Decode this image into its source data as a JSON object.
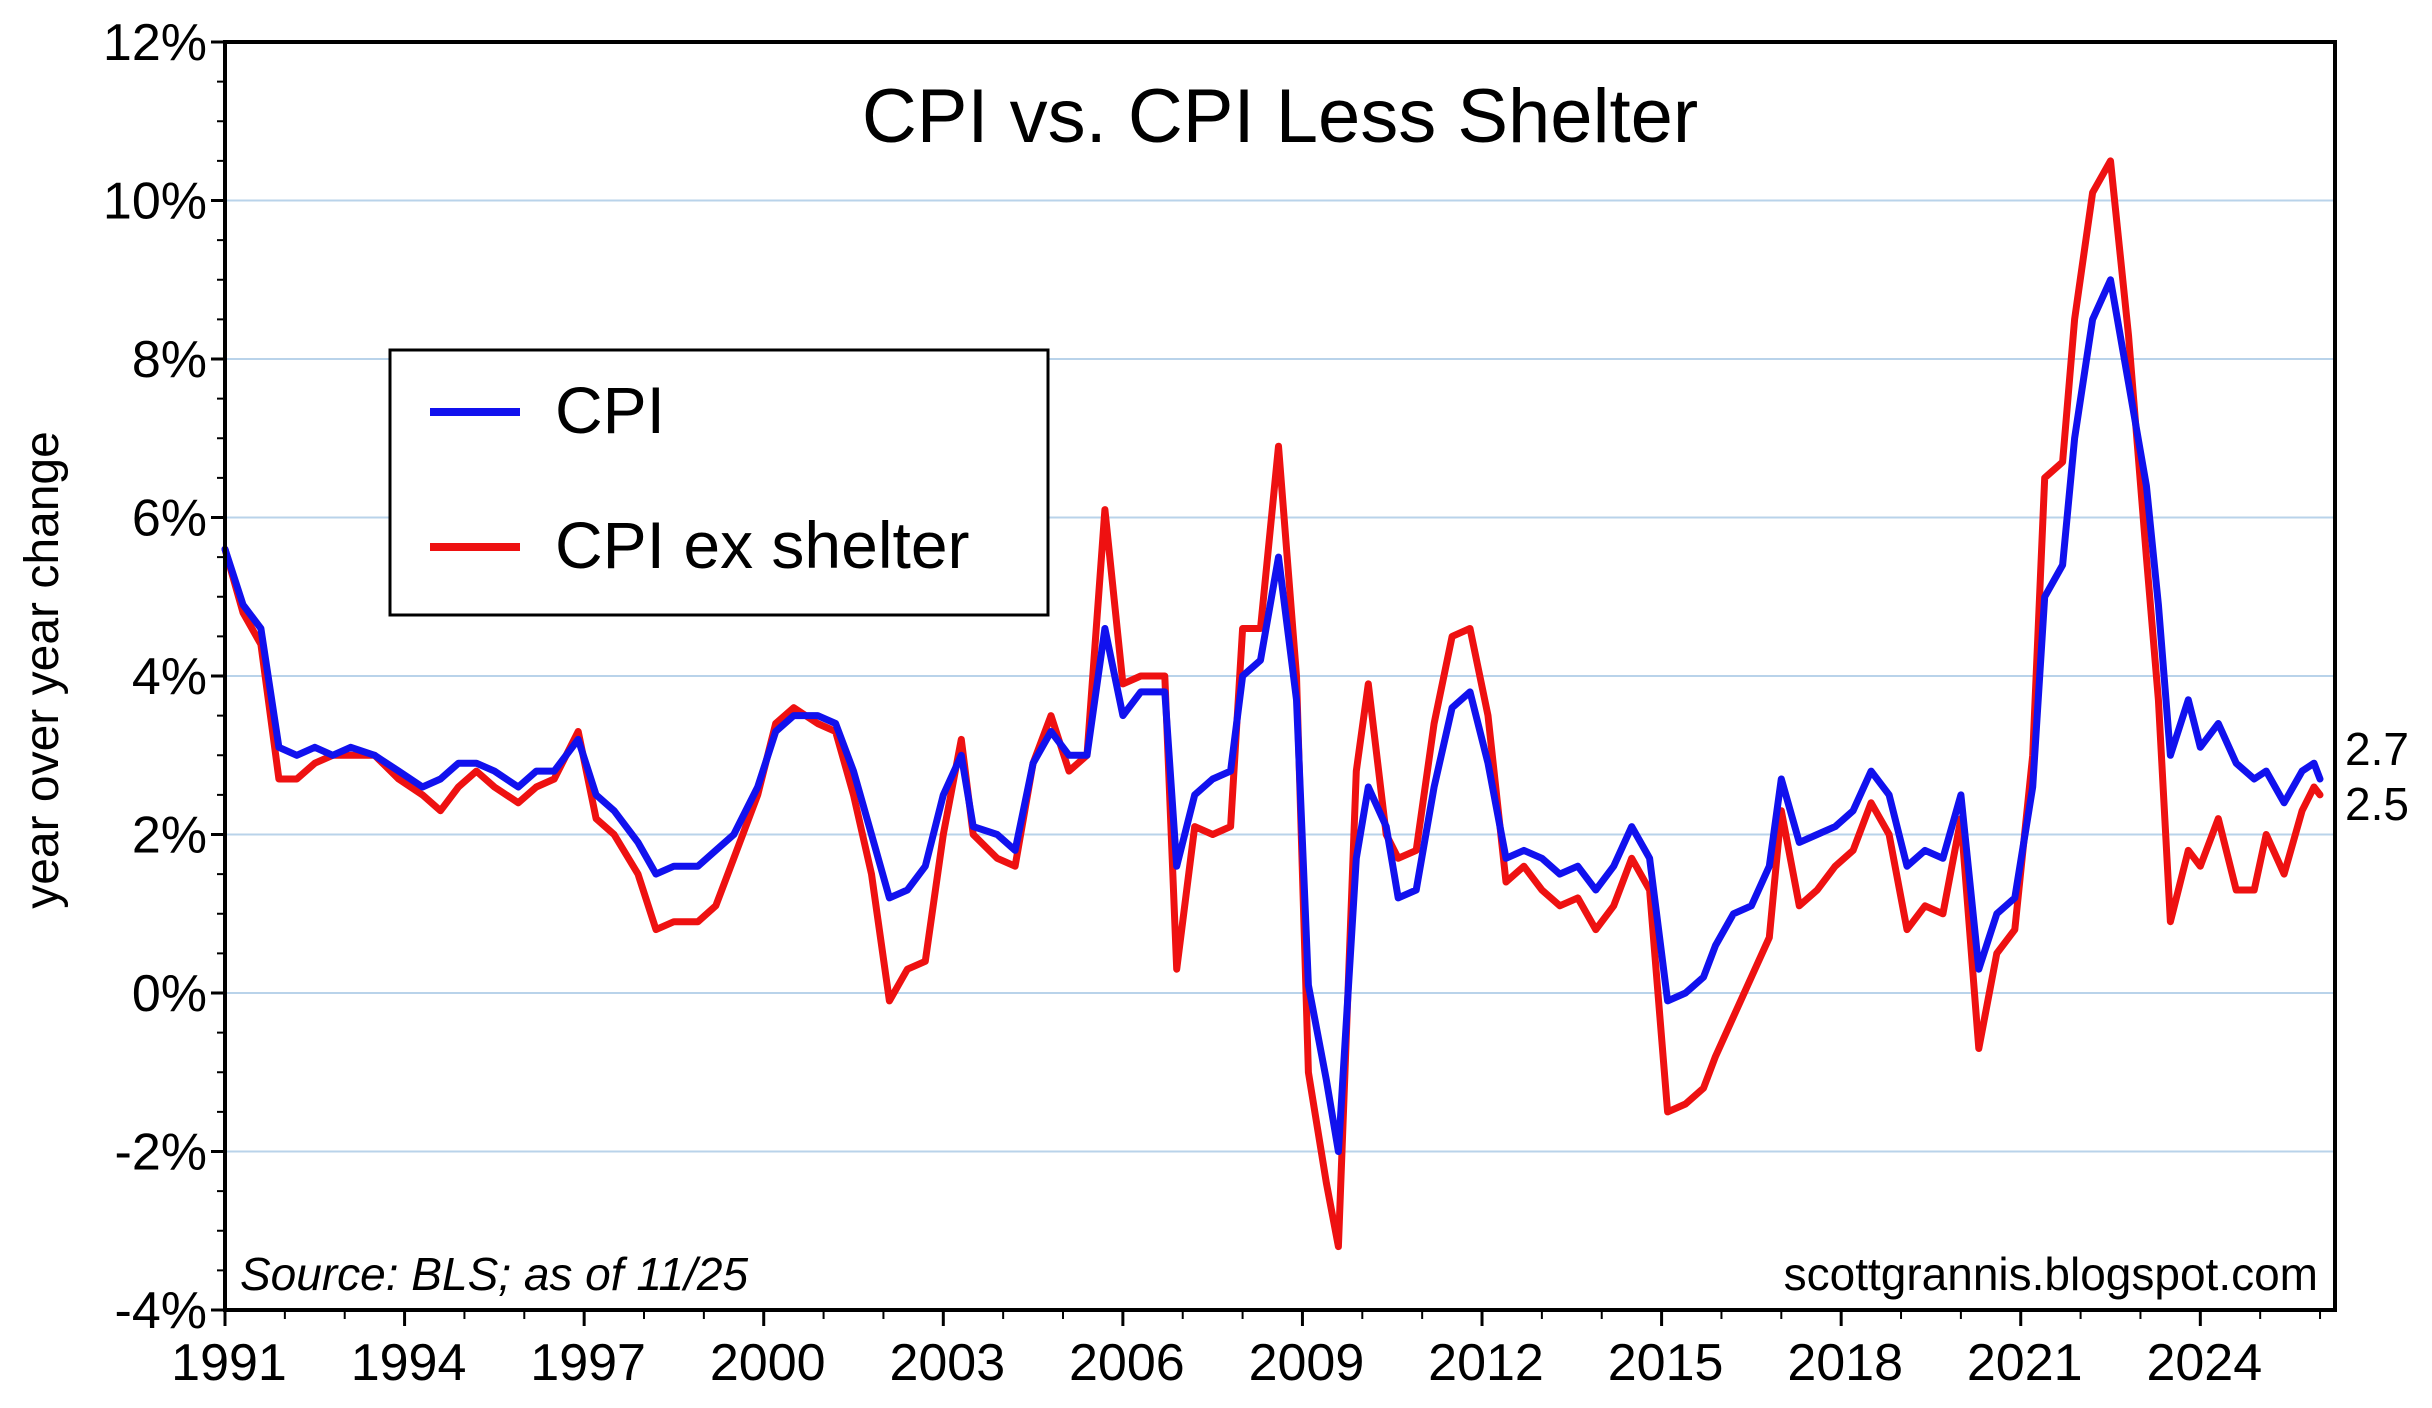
{
  "chart_data": {
    "type": "line",
    "title": "CPI vs. CPI Less Shelter",
    "xlabel": "",
    "ylabel": "year over year change",
    "xlim": [
      1991.0,
      2026.25
    ],
    "ylim": [
      -4,
      12
    ],
    "x_ticks": [
      1991,
      1994,
      1997,
      2000,
      2003,
      2006,
      2009,
      2012,
      2015,
      2018,
      2021,
      2024
    ],
    "x_tick_labels": [
      "1991",
      "1994",
      "1997",
      "2000",
      "2003",
      "2006",
      "2009",
      "2012",
      "2015",
      "2018",
      "2021",
      "2024"
    ],
    "y_ticks": [
      -4,
      -2,
      0,
      2,
      4,
      6,
      8,
      10,
      12
    ],
    "y_tick_labels": [
      "-4%",
      "-2%",
      "0%",
      "2%",
      "4%",
      "6%",
      "8%",
      "10%",
      "12%"
    ],
    "grid": "horizontal",
    "grid_color": "#b9d3ea",
    "legend_position": "upper-left",
    "source_note": "Source: BLS; as of 11/25",
    "watermark": "scottgrannis.blogspot.com",
    "series": [
      {
        "name": "CPI",
        "color": "#1111ee",
        "end_label": "2.7",
        "points": [
          [
            1991.0,
            5.6
          ],
          [
            1991.3,
            4.9
          ],
          [
            1991.6,
            4.6
          ],
          [
            1991.9,
            3.1
          ],
          [
            1992.2,
            3.0
          ],
          [
            1992.5,
            3.1
          ],
          [
            1992.8,
            3.0
          ],
          [
            1993.1,
            3.1
          ],
          [
            1993.5,
            3.0
          ],
          [
            1993.9,
            2.8
          ],
          [
            1994.3,
            2.6
          ],
          [
            1994.6,
            2.7
          ],
          [
            1994.9,
            2.9
          ],
          [
            1995.2,
            2.9
          ],
          [
            1995.5,
            2.8
          ],
          [
            1995.9,
            2.6
          ],
          [
            1996.2,
            2.8
          ],
          [
            1996.5,
            2.8
          ],
          [
            1996.9,
            3.2
          ],
          [
            1997.2,
            2.5
          ],
          [
            1997.5,
            2.3
          ],
          [
            1997.9,
            1.9
          ],
          [
            1998.2,
            1.5
          ],
          [
            1998.5,
            1.6
          ],
          [
            1998.9,
            1.6
          ],
          [
            1999.2,
            1.8
          ],
          [
            1999.5,
            2.0
          ],
          [
            1999.9,
            2.6
          ],
          [
            2000.2,
            3.3
          ],
          [
            2000.5,
            3.5
          ],
          [
            2000.9,
            3.5
          ],
          [
            2001.2,
            3.4
          ],
          [
            2001.5,
            2.8
          ],
          [
            2001.8,
            2.0
          ],
          [
            2002.1,
            1.2
          ],
          [
            2002.4,
            1.3
          ],
          [
            2002.7,
            1.6
          ],
          [
            2003.0,
            2.5
          ],
          [
            2003.3,
            3.0
          ],
          [
            2003.5,
            2.1
          ],
          [
            2003.9,
            2.0
          ],
          [
            2004.2,
            1.8
          ],
          [
            2004.5,
            2.9
          ],
          [
            2004.8,
            3.3
          ],
          [
            2005.1,
            3.0
          ],
          [
            2005.4,
            3.0
          ],
          [
            2005.7,
            4.6
          ],
          [
            2006.0,
            3.5
          ],
          [
            2006.3,
            3.8
          ],
          [
            2006.7,
            3.8
          ],
          [
            2006.9,
            1.6
          ],
          [
            2007.2,
            2.5
          ],
          [
            2007.5,
            2.7
          ],
          [
            2007.8,
            2.8
          ],
          [
            2008.0,
            4.0
          ],
          [
            2008.3,
            4.2
          ],
          [
            2008.6,
            5.5
          ],
          [
            2008.9,
            3.7
          ],
          [
            2009.1,
            0.1
          ],
          [
            2009.4,
            -1.1
          ],
          [
            2009.6,
            -2.0
          ],
          [
            2009.9,
            1.7
          ],
          [
            2010.1,
            2.6
          ],
          [
            2010.4,
            2.1
          ],
          [
            2010.6,
            1.2
          ],
          [
            2010.9,
            1.3
          ],
          [
            2011.2,
            2.6
          ],
          [
            2011.5,
            3.6
          ],
          [
            2011.8,
            3.8
          ],
          [
            2012.1,
            2.9
          ],
          [
            2012.4,
            1.7
          ],
          [
            2012.7,
            1.8
          ],
          [
            2013.0,
            1.7
          ],
          [
            2013.3,
            1.5
          ],
          [
            2013.6,
            1.6
          ],
          [
            2013.9,
            1.3
          ],
          [
            2014.2,
            1.6
          ],
          [
            2014.5,
            2.1
          ],
          [
            2014.8,
            1.7
          ],
          [
            2015.1,
            -0.1
          ],
          [
            2015.4,
            0.0
          ],
          [
            2015.7,
            0.2
          ],
          [
            2015.9,
            0.6
          ],
          [
            2016.2,
            1.0
          ],
          [
            2016.5,
            1.1
          ],
          [
            2016.8,
            1.6
          ],
          [
            2017.0,
            2.7
          ],
          [
            2017.3,
            1.9
          ],
          [
            2017.6,
            2.0
          ],
          [
            2017.9,
            2.1
          ],
          [
            2018.2,
            2.3
          ],
          [
            2018.5,
            2.8
          ],
          [
            2018.8,
            2.5
          ],
          [
            2019.1,
            1.6
          ],
          [
            2019.4,
            1.8
          ],
          [
            2019.7,
            1.7
          ],
          [
            2020.0,
            2.5
          ],
          [
            2020.3,
            0.3
          ],
          [
            2020.6,
            1.0
          ],
          [
            2020.9,
            1.2
          ],
          [
            2021.2,
            2.6
          ],
          [
            2021.4,
            5.0
          ],
          [
            2021.7,
            5.4
          ],
          [
            2021.9,
            7.0
          ],
          [
            2022.2,
            8.5
          ],
          [
            2022.5,
            9.0
          ],
          [
            2022.8,
            7.7
          ],
          [
            2023.1,
            6.4
          ],
          [
            2023.3,
            4.9
          ],
          [
            2023.5,
            3.0
          ],
          [
            2023.8,
            3.7
          ],
          [
            2024.0,
            3.1
          ],
          [
            2024.3,
            3.4
          ],
          [
            2024.6,
            2.9
          ],
          [
            2024.9,
            2.7
          ],
          [
            2025.1,
            2.8
          ],
          [
            2025.4,
            2.4
          ],
          [
            2025.7,
            2.8
          ],
          [
            2025.9,
            2.9
          ],
          [
            2026.0,
            2.7
          ]
        ]
      },
      {
        "name": "CPI ex shelter",
        "color": "#ee1111",
        "end_label": "2.5",
        "points": [
          [
            1991.0,
            5.6
          ],
          [
            1991.3,
            4.8
          ],
          [
            1991.6,
            4.4
          ],
          [
            1991.9,
            2.7
          ],
          [
            1992.2,
            2.7
          ],
          [
            1992.5,
            2.9
          ],
          [
            1992.8,
            3.0
          ],
          [
            1993.1,
            3.0
          ],
          [
            1993.5,
            3.0
          ],
          [
            1993.9,
            2.7
          ],
          [
            1994.3,
            2.5
          ],
          [
            1994.6,
            2.3
          ],
          [
            1994.9,
            2.6
          ],
          [
            1995.2,
            2.8
          ],
          [
            1995.5,
            2.6
          ],
          [
            1995.9,
            2.4
          ],
          [
            1996.2,
            2.6
          ],
          [
            1996.5,
            2.7
          ],
          [
            1996.9,
            3.3
          ],
          [
            1997.2,
            2.2
          ],
          [
            1997.5,
            2.0
          ],
          [
            1997.9,
            1.5
          ],
          [
            1998.2,
            0.8
          ],
          [
            1998.5,
            0.9
          ],
          [
            1998.9,
            0.9
          ],
          [
            1999.2,
            1.1
          ],
          [
            1999.5,
            1.7
          ],
          [
            1999.9,
            2.5
          ],
          [
            2000.2,
            3.4
          ],
          [
            2000.5,
            3.6
          ],
          [
            2000.9,
            3.4
          ],
          [
            2001.2,
            3.3
          ],
          [
            2001.5,
            2.5
          ],
          [
            2001.8,
            1.5
          ],
          [
            2002.1,
            -0.1
          ],
          [
            2002.4,
            0.3
          ],
          [
            2002.7,
            0.4
          ],
          [
            2003.0,
            2.0
          ],
          [
            2003.3,
            3.2
          ],
          [
            2003.5,
            2.0
          ],
          [
            2003.9,
            1.7
          ],
          [
            2004.2,
            1.6
          ],
          [
            2004.5,
            2.9
          ],
          [
            2004.8,
            3.5
          ],
          [
            2005.1,
            2.8
          ],
          [
            2005.4,
            3.0
          ],
          [
            2005.7,
            6.1
          ],
          [
            2006.0,
            3.9
          ],
          [
            2006.3,
            4.0
          ],
          [
            2006.7,
            4.0
          ],
          [
            2006.9,
            0.3
          ],
          [
            2007.2,
            2.1
          ],
          [
            2007.5,
            2.0
          ],
          [
            2007.8,
            2.1
          ],
          [
            2008.0,
            4.6
          ],
          [
            2008.3,
            4.6
          ],
          [
            2008.6,
            6.9
          ],
          [
            2008.9,
            4.0
          ],
          [
            2009.1,
            -1.0
          ],
          [
            2009.4,
            -2.4
          ],
          [
            2009.6,
            -3.2
          ],
          [
            2009.9,
            2.8
          ],
          [
            2010.1,
            3.9
          ],
          [
            2010.4,
            2.0
          ],
          [
            2010.6,
            1.7
          ],
          [
            2010.9,
            1.8
          ],
          [
            2011.2,
            3.4
          ],
          [
            2011.5,
            4.5
          ],
          [
            2011.8,
            4.6
          ],
          [
            2012.1,
            3.5
          ],
          [
            2012.4,
            1.4
          ],
          [
            2012.7,
            1.6
          ],
          [
            2013.0,
            1.3
          ],
          [
            2013.3,
            1.1
          ],
          [
            2013.6,
            1.2
          ],
          [
            2013.9,
            0.8
          ],
          [
            2014.2,
            1.1
          ],
          [
            2014.5,
            1.7
          ],
          [
            2014.8,
            1.3
          ],
          [
            2015.1,
            -1.5
          ],
          [
            2015.4,
            -1.4
          ],
          [
            2015.7,
            -1.2
          ],
          [
            2015.9,
            -0.8
          ],
          [
            2016.2,
            -0.3
          ],
          [
            2016.5,
            0.2
          ],
          [
            2016.8,
            0.7
          ],
          [
            2017.0,
            2.3
          ],
          [
            2017.3,
            1.1
          ],
          [
            2017.6,
            1.3
          ],
          [
            2017.9,
            1.6
          ],
          [
            2018.2,
            1.8
          ],
          [
            2018.5,
            2.4
          ],
          [
            2018.8,
            2.0
          ],
          [
            2019.1,
            0.8
          ],
          [
            2019.4,
            1.1
          ],
          [
            2019.7,
            1.0
          ],
          [
            2020.0,
            2.2
          ],
          [
            2020.3,
            -0.7
          ],
          [
            2020.6,
            0.5
          ],
          [
            2020.9,
            0.8
          ],
          [
            2021.2,
            3.0
          ],
          [
            2021.4,
            6.5
          ],
          [
            2021.7,
            6.7
          ],
          [
            2021.9,
            8.5
          ],
          [
            2022.2,
            10.1
          ],
          [
            2022.5,
            10.5
          ],
          [
            2022.8,
            8.3
          ],
          [
            2023.1,
            5.5
          ],
          [
            2023.3,
            3.7
          ],
          [
            2023.5,
            0.9
          ],
          [
            2023.8,
            1.8
          ],
          [
            2024.0,
            1.6
          ],
          [
            2024.3,
            2.2
          ],
          [
            2024.6,
            1.3
          ],
          [
            2024.9,
            1.3
          ],
          [
            2025.1,
            2.0
          ],
          [
            2025.4,
            1.5
          ],
          [
            2025.7,
            2.3
          ],
          [
            2025.9,
            2.6
          ],
          [
            2026.0,
            2.5
          ]
        ]
      }
    ]
  }
}
